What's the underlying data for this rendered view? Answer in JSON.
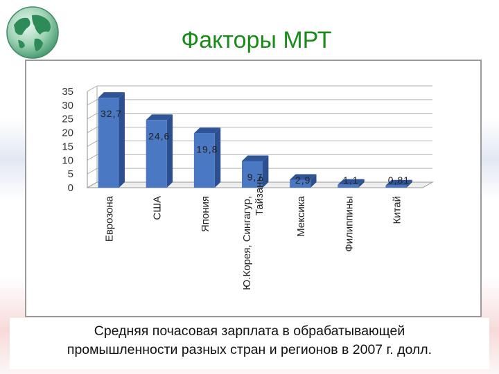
{
  "slide": {
    "title": "Факторы МРТ",
    "caption_line1": "Средняя почасовая зарплата в обрабатывающей",
    "caption_line2": "промышленности разных стран и регионов в 2007 г. долл.",
    "logo_icon": "globe-icon"
  },
  "chart_data": {
    "type": "bar",
    "style": "3d-column",
    "title": "",
    "xlabel": "",
    "ylabel": "",
    "categories": [
      "Еврозона",
      "США",
      "Япония",
      "Ю.Корея, Сингагур, Тайзань",
      "Мексика",
      "Филиппины",
      "Китай"
    ],
    "category_lines": [
      [
        "Еврозона"
      ],
      [
        "США"
      ],
      [
        "Япония"
      ],
      [
        "Ю.Корея, Сингагур,",
        "Тайзань"
      ],
      [
        "Мексика"
      ],
      [
        "Филиппины"
      ],
      [
        "Китай"
      ]
    ],
    "values": [
      32.7,
      24.6,
      19.8,
      9.7,
      2.9,
      1.1,
      0.81
    ],
    "data_labels": [
      "32,7",
      "24,6",
      "19,8",
      "9,7",
      "2,9",
      "1,1",
      "0,81"
    ],
    "yticks": [
      "0",
      "5",
      "10",
      "15",
      "20",
      "25",
      "30",
      "35"
    ],
    "ylim": [
      0,
      35
    ],
    "grid": true,
    "legend": "none",
    "colors": {
      "bar_front": "#4a78c2",
      "bar_side": "#2c4f8f",
      "bar_top": "#2f5597",
      "grid": "#b0b0b0",
      "title": "#1a8a1a"
    }
  }
}
